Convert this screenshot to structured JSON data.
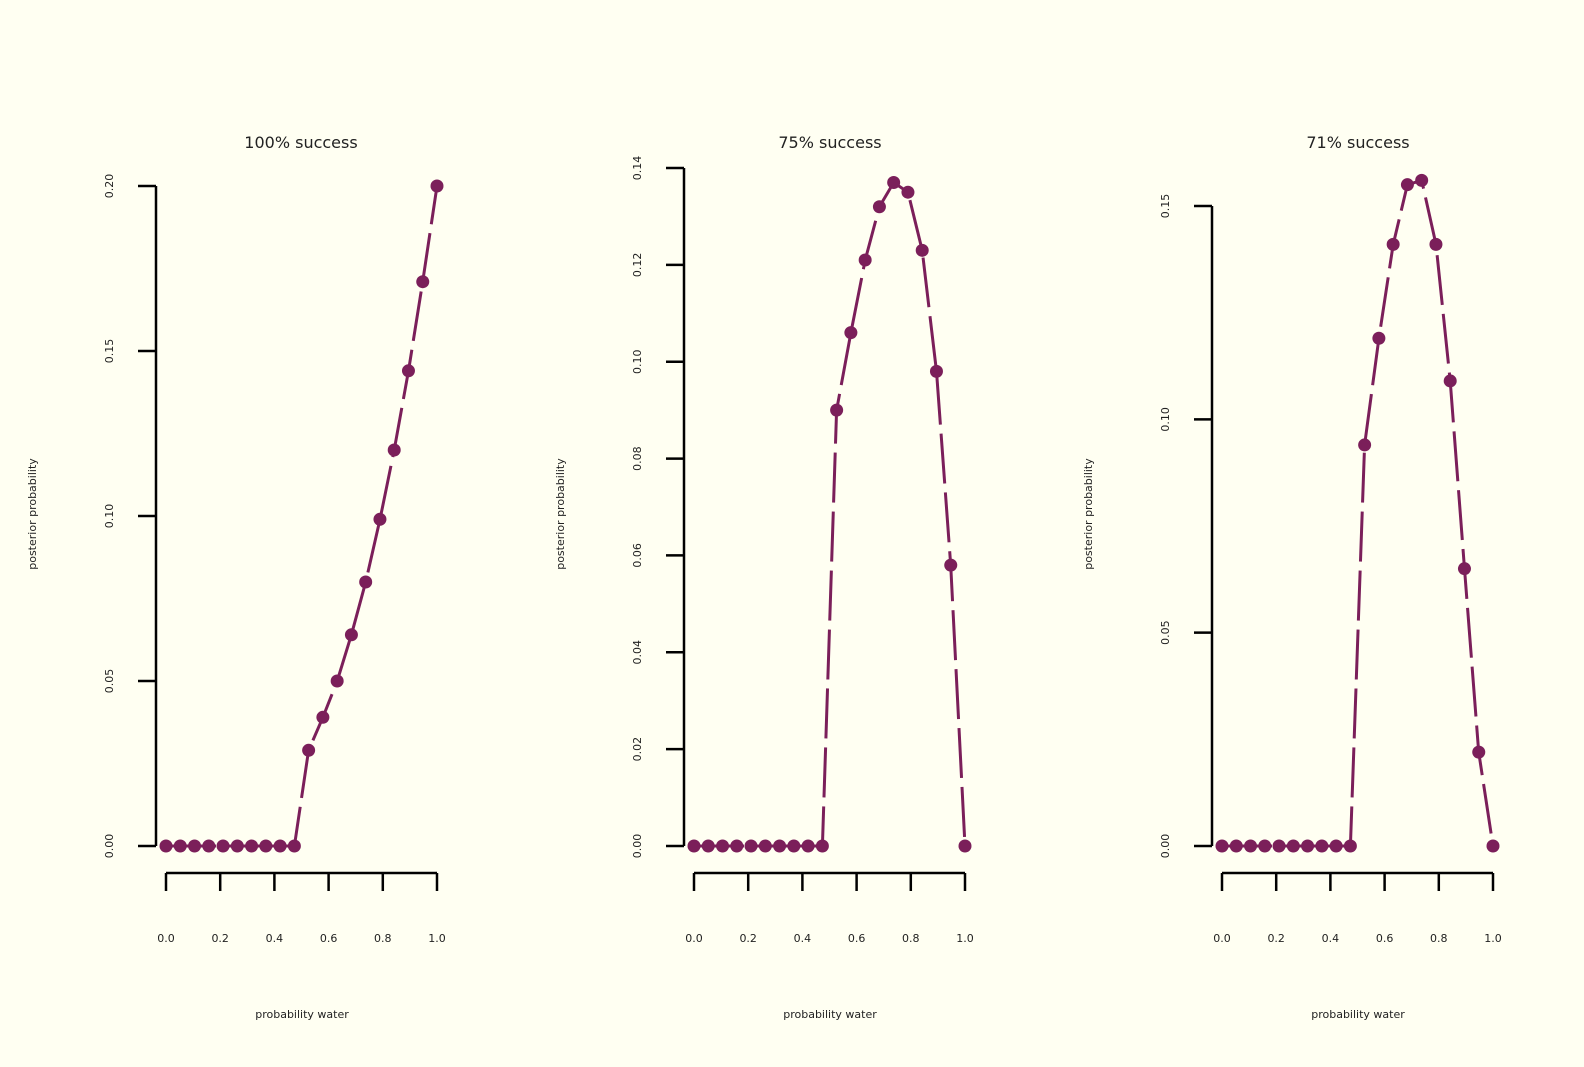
{
  "chart_data": [
    {
      "type": "line",
      "title": "100% success",
      "xlabel": "probability water",
      "ylabel": "posterior probability",
      "xlim": [
        0,
        1
      ],
      "ylim": [
        0,
        0.2
      ],
      "x_ticks": [
        "0.0",
        "0.2",
        "0.4",
        "0.6",
        "0.8",
        "1.0"
      ],
      "y_ticks": [
        "0.00",
        "0.05",
        "0.10",
        "0.15",
        "0.20"
      ],
      "x": [
        0.0,
        0.0526,
        0.1053,
        0.1579,
        0.2105,
        0.2632,
        0.3158,
        0.3684,
        0.4211,
        0.4737,
        0.5263,
        0.5789,
        0.6316,
        0.6842,
        0.7368,
        0.7895,
        0.8421,
        0.8947,
        0.9474,
        1.0
      ],
      "y": [
        0,
        0,
        0,
        0,
        0,
        0,
        0,
        0,
        0,
        0,
        0.029,
        0.039,
        0.05,
        0.064,
        0.08,
        0.099,
        0.12,
        0.144,
        0.171,
        0.2
      ]
    },
    {
      "type": "line",
      "title": "75% success",
      "xlabel": "probability water",
      "ylabel": "posterior probability",
      "xlim": [
        0,
        1
      ],
      "ylim": [
        0,
        0.14
      ],
      "x_ticks": [
        "0.0",
        "0.2",
        "0.4",
        "0.6",
        "0.8",
        "1.0"
      ],
      "y_ticks": [
        "0.00",
        "0.02",
        "0.04",
        "0.06",
        "0.08",
        "0.10",
        "0.12",
        "0.14"
      ],
      "x": [
        0.0,
        0.0526,
        0.1053,
        0.1579,
        0.2105,
        0.2632,
        0.3158,
        0.3684,
        0.4211,
        0.4737,
        0.5263,
        0.5789,
        0.6316,
        0.6842,
        0.7368,
        0.7895,
        0.8421,
        0.8947,
        0.9474,
        1.0
      ],
      "y": [
        0,
        0,
        0,
        0,
        0,
        0,
        0,
        0,
        0,
        0,
        0.09,
        0.106,
        0.121,
        0.132,
        0.137,
        0.135,
        0.123,
        0.098,
        0.058,
        0
      ]
    },
    {
      "type": "line",
      "title": "71% success",
      "xlabel": "probability water",
      "ylabel": "posterior probability",
      "xlim": [
        0,
        1
      ],
      "ylim": [
        0,
        0.15
      ],
      "x_ticks": [
        "0.0",
        "0.2",
        "0.4",
        "0.6",
        "0.8",
        "1.0"
      ],
      "y_ticks": [
        "0.00",
        "0.05",
        "0.10",
        "0.15"
      ],
      "x": [
        0.0,
        0.0526,
        0.1053,
        0.1579,
        0.2105,
        0.2632,
        0.3158,
        0.3684,
        0.4211,
        0.4737,
        0.5263,
        0.5789,
        0.6316,
        0.6842,
        0.7368,
        0.7895,
        0.8421,
        0.8947,
        0.9474,
        1.0
      ],
      "y": [
        0,
        0,
        0,
        0,
        0,
        0,
        0,
        0,
        0,
        0,
        0.094,
        0.119,
        0.141,
        0.155,
        0.156,
        0.141,
        0.109,
        0.065,
        0.022,
        0
      ]
    }
  ],
  "colors": {
    "background": "#fffff2",
    "series": "#7b1f5a",
    "axis": "#000000"
  }
}
